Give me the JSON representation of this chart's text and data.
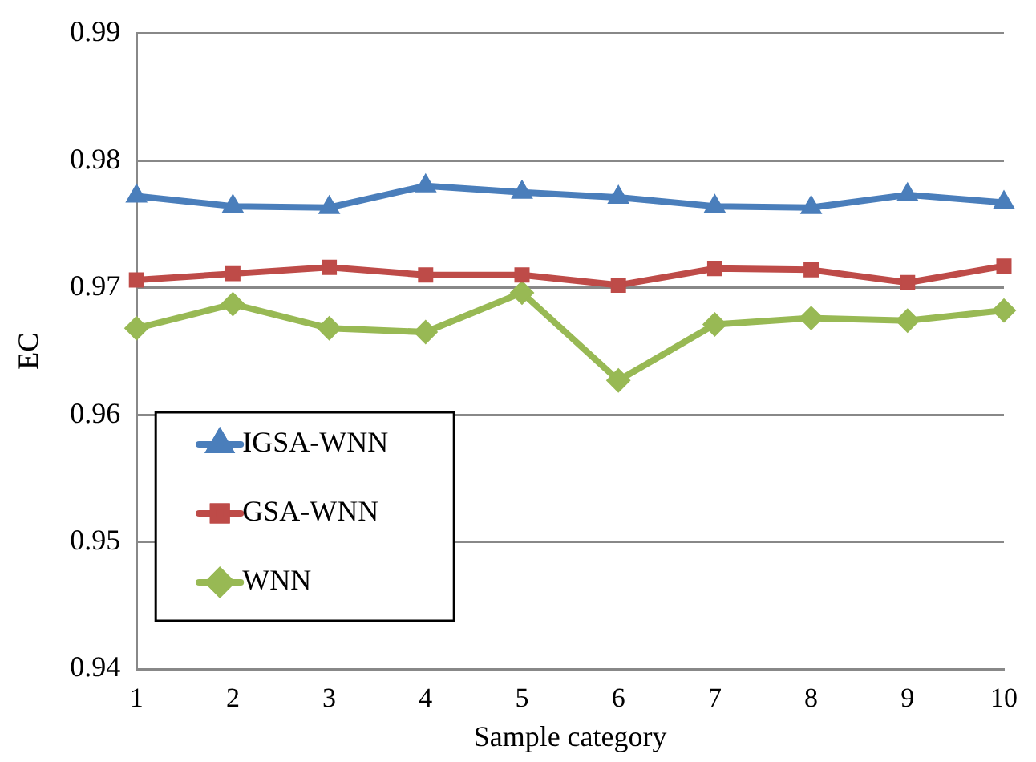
{
  "chart_data": {
    "type": "line",
    "xlabel": "Sample category",
    "ylabel": "EC",
    "categories": [
      "1",
      "2",
      "3",
      "4",
      "5",
      "6",
      "7",
      "8",
      "9",
      "10"
    ],
    "series": [
      {
        "name": "IGSA-WNN",
        "color": "#4a7ebb",
        "marker": "triangle",
        "values": [
          0.9772,
          0.9764,
          0.9763,
          0.978,
          0.9775,
          0.9771,
          0.9764,
          0.9763,
          0.9773,
          0.9767
        ]
      },
      {
        "name": "GSA-WNN",
        "color": "#be4b48",
        "marker": "square",
        "values": [
          0.9706,
          0.9711,
          0.9716,
          0.971,
          0.971,
          0.9702,
          0.9715,
          0.9714,
          0.9704,
          0.9717
        ]
      },
      {
        "name": "WNN",
        "color": "#98b954",
        "marker": "diamond",
        "values": [
          0.9668,
          0.9687,
          0.9668,
          0.9665,
          0.9696,
          0.9627,
          0.9671,
          0.9676,
          0.9674,
          0.9682
        ]
      }
    ],
    "ylim": [
      0.94,
      0.99
    ],
    "yticks": [
      {
        "value": 0.94,
        "label": "0.94"
      },
      {
        "value": 0.95,
        "label": "0.95"
      },
      {
        "value": 0.96,
        "label": "0.96"
      },
      {
        "value": 0.97,
        "label": "0.97"
      },
      {
        "value": 0.98,
        "label": "0.98"
      },
      {
        "value": 0.99,
        "label": "0.99"
      }
    ],
    "grid": "y",
    "legend": "bottom left",
    "line_style": "solid"
  }
}
